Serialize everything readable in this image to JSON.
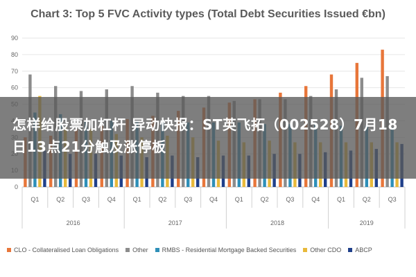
{
  "overlay": {
    "headline": "怎样给股票加杠杆 异动快报：ST英飞拓（002528）7月18日13点21分触及涨停板"
  },
  "chart_data": {
    "type": "bar",
    "title": "Chart 3: Top 5 FVC Activity types (Total Debt Securities Issued €bn)",
    "xlabel": "",
    "ylabel": "",
    "ylim": [
      0,
      90
    ],
    "yticks": [
      0,
      10,
      20,
      30,
      40,
      50,
      60,
      70,
      80,
      90
    ],
    "grid": true,
    "legend_position": "bottom",
    "categories": [
      "Q1",
      "Q2",
      "Q3",
      "Q4",
      "Q1",
      "Q2",
      "Q3",
      "Q4",
      "Q1",
      "Q2",
      "Q3",
      "Q4",
      "Q1",
      "Q2",
      "Q3"
    ],
    "year_groups": [
      {
        "label": "2016",
        "count": 4
      },
      {
        "label": "2017",
        "count": 4
      },
      {
        "label": "2018",
        "count": 4
      },
      {
        "label": "2019",
        "count": 3
      }
    ],
    "series": [
      {
        "name": "CLO - Collateralised Loan Obligations",
        "color": "#e8763a",
        "values": [
          30,
          31,
          35,
          37,
          41,
          43,
          46,
          48,
          51,
          53,
          57,
          61,
          68,
          75,
          83
        ]
      },
      {
        "name": "Other",
        "color": "#8c8c8c",
        "values": [
          68,
          61,
          58,
          59,
          61,
          57,
          55,
          55,
          52,
          53,
          53,
          55,
          59,
          66,
          67
        ]
      },
      {
        "name": "RMBS - Residential Mortgage Backed Securities",
        "color": "#2e8fb8",
        "values": [
          45,
          44,
          40,
          40,
          40,
          40,
          39,
          39,
          39,
          38,
          38,
          38,
          37,
          37,
          36
        ]
      },
      {
        "name": "Other CDO",
        "color": "#e8b93a",
        "values": [
          55,
          36,
          35,
          32,
          30,
          31,
          30,
          28,
          27,
          28,
          27,
          27,
          27,
          27,
          27
        ]
      },
      {
        "name": "ABCP",
        "color": "#1f3f8a",
        "values": [
          22,
          20,
          20,
          19,
          18,
          19,
          18,
          19,
          19,
          20,
          20,
          21,
          22,
          23,
          26
        ]
      }
    ]
  }
}
